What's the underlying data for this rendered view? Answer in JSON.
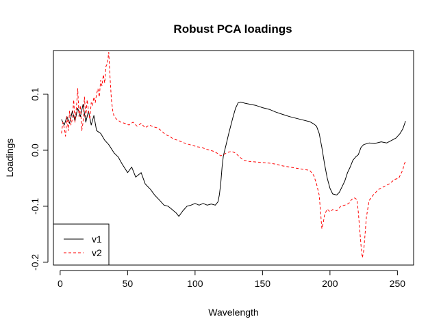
{
  "chart_data": {
    "type": "line",
    "title": "Robust PCA loadings",
    "xlabel": "Wavelength",
    "ylabel": "Loadings",
    "xlim": [
      -5,
      262
    ],
    "ylim": [
      -0.205,
      0.178
    ],
    "x_ticks": [
      0,
      50,
      100,
      150,
      200,
      250
    ],
    "x_tick_labels": [
      "0",
      "50",
      "100",
      "150",
      "200",
      "250"
    ],
    "y_ticks": [
      -0.2,
      -0.1,
      0.0,
      0.1
    ],
    "y_tick_labels": [
      "-0.2",
      "-0.1",
      "0.0",
      "0.1"
    ],
    "grid": false,
    "legend": {
      "position": "bottom-left",
      "entries": [
        "v1",
        "v2"
      ]
    },
    "series": [
      {
        "name": "v1",
        "color": "#000000",
        "dash": "solid",
        "points": [
          [
            1,
            0.055
          ],
          [
            3,
            0.045
          ],
          [
            5,
            0.06
          ],
          [
            7,
            0.048
          ],
          [
            9,
            0.07
          ],
          [
            11,
            0.052
          ],
          [
            13,
            0.075
          ],
          [
            15,
            0.06
          ],
          [
            17,
            0.082
          ],
          [
            19,
            0.05
          ],
          [
            21,
            0.07
          ],
          [
            23,
            0.045
          ],
          [
            25,
            0.062
          ],
          [
            27,
            0.035
          ],
          [
            30,
            0.03
          ],
          [
            33,
            0.018
          ],
          [
            36,
            0.01
          ],
          [
            40,
            -0.005
          ],
          [
            43,
            -0.012
          ],
          [
            46,
            -0.025
          ],
          [
            50,
            -0.04
          ],
          [
            53,
            -0.03
          ],
          [
            56,
            -0.048
          ],
          [
            60,
            -0.04
          ],
          [
            63,
            -0.06
          ],
          [
            67,
            -0.07
          ],
          [
            70,
            -0.08
          ],
          [
            74,
            -0.09
          ],
          [
            77,
            -0.098
          ],
          [
            80,
            -0.1
          ],
          [
            83,
            -0.106
          ],
          [
            86,
            -0.112
          ],
          [
            88,
            -0.118
          ],
          [
            91,
            -0.108
          ],
          [
            94,
            -0.1
          ],
          [
            97,
            -0.098
          ],
          [
            100,
            -0.095
          ],
          [
            103,
            -0.098
          ],
          [
            106,
            -0.095
          ],
          [
            109,
            -0.098
          ],
          [
            112,
            -0.096
          ],
          [
            115,
            -0.098
          ],
          [
            117,
            -0.092
          ],
          [
            118,
            -0.08
          ],
          [
            119,
            -0.06
          ],
          [
            120,
            -0.03
          ],
          [
            121,
            -0.01
          ],
          [
            123,
            0.01
          ],
          [
            125,
            0.03
          ],
          [
            128,
            0.058
          ],
          [
            130,
            0.075
          ],
          [
            132,
            0.085
          ],
          [
            134,
            0.086
          ],
          [
            137,
            0.084
          ],
          [
            141,
            0.082
          ],
          [
            145,
            0.08
          ],
          [
            150,
            0.076
          ],
          [
            155,
            0.073
          ],
          [
            160,
            0.068
          ],
          [
            165,
            0.064
          ],
          [
            170,
            0.06
          ],
          [
            175,
            0.057
          ],
          [
            180,
            0.054
          ],
          [
            185,
            0.051
          ],
          [
            188,
            0.047
          ],
          [
            190,
            0.043
          ],
          [
            192,
            0.03
          ],
          [
            194,
            0.005
          ],
          [
            196,
            -0.025
          ],
          [
            198,
            -0.05
          ],
          [
            200,
            -0.068
          ],
          [
            202,
            -0.078
          ],
          [
            205,
            -0.08
          ],
          [
            207,
            -0.075
          ],
          [
            209,
            -0.065
          ],
          [
            211,
            -0.055
          ],
          [
            213,
            -0.04
          ],
          [
            215,
            -0.03
          ],
          [
            217,
            -0.018
          ],
          [
            219,
            -0.012
          ],
          [
            221,
            -0.008
          ],
          [
            223,
            0.005
          ],
          [
            225,
            0.01
          ],
          [
            229,
            0.013
          ],
          [
            233,
            0.012
          ],
          [
            238,
            0.015
          ],
          [
            242,
            0.013
          ],
          [
            246,
            0.018
          ],
          [
            249,
            0.022
          ],
          [
            252,
            0.03
          ],
          [
            254,
            0.038
          ],
          [
            256,
            0.052
          ]
        ]
      },
      {
        "name": "v2",
        "color": "#ff0000",
        "dash": "dashed",
        "points": [
          [
            1,
            0.03
          ],
          [
            2,
            0.05
          ],
          [
            3,
            0.04
          ],
          [
            4,
            0.025
          ],
          [
            5,
            0.06
          ],
          [
            6,
            0.035
          ],
          [
            7,
            0.07
          ],
          [
            8,
            0.045
          ],
          [
            9,
            0.055
          ],
          [
            10,
            0.09
          ],
          [
            11,
            0.05
          ],
          [
            12,
            0.075
          ],
          [
            13,
            0.11
          ],
          [
            14,
            0.06
          ],
          [
            15,
            0.08
          ],
          [
            16,
            0.035
          ],
          [
            17,
            0.05
          ],
          [
            18,
            0.095
          ],
          [
            19,
            0.06
          ],
          [
            20,
            0.09
          ],
          [
            21,
            0.07
          ],
          [
            22,
            0.055
          ],
          [
            23,
            0.085
          ],
          [
            24,
            0.08
          ],
          [
            25,
            0.095
          ],
          [
            26,
            0.085
          ],
          [
            27,
            0.1
          ],
          [
            28,
            0.11
          ],
          [
            29,
            0.095
          ],
          [
            30,
            0.125
          ],
          [
            31,
            0.115
          ],
          [
            32,
            0.135
          ],
          [
            33,
            0.12
          ],
          [
            34,
            0.15
          ],
          [
            35,
            0.155
          ],
          [
            36,
            0.175
          ],
          [
            37,
            0.13
          ],
          [
            38,
            0.09
          ],
          [
            39,
            0.07
          ],
          [
            40,
            0.06
          ],
          [
            42,
            0.055
          ],
          [
            45,
            0.05
          ],
          [
            48,
            0.048
          ],
          [
            51,
            0.045
          ],
          [
            54,
            0.05
          ],
          [
            57,
            0.043
          ],
          [
            60,
            0.048
          ],
          [
            63,
            0.04
          ],
          [
            66,
            0.045
          ],
          [
            69,
            0.042
          ],
          [
            72,
            0.04
          ],
          [
            75,
            0.035
          ],
          [
            78,
            0.028
          ],
          [
            81,
            0.025
          ],
          [
            84,
            0.02
          ],
          [
            87,
            0.018
          ],
          [
            90,
            0.015
          ],
          [
            93,
            0.012
          ],
          [
            96,
            0.01
          ],
          [
            99,
            0.008
          ],
          [
            102,
            0.006
          ],
          [
            105,
            0.005
          ],
          [
            108,
            0.002
          ],
          [
            111,
            0.0
          ],
          [
            114,
            -0.002
          ],
          [
            117,
            -0.006
          ],
          [
            119,
            -0.01
          ],
          [
            121,
            -0.008
          ],
          [
            124,
            -0.004
          ],
          [
            127,
            -0.002
          ],
          [
            130,
            -0.005
          ],
          [
            133,
            -0.012
          ],
          [
            136,
            -0.018
          ],
          [
            140,
            -0.02
          ],
          [
            145,
            -0.021
          ],
          [
            150,
            -0.022
          ],
          [
            155,
            -0.023
          ],
          [
            160,
            -0.025
          ],
          [
            165,
            -0.028
          ],
          [
            170,
            -0.03
          ],
          [
            175,
            -0.032
          ],
          [
            180,
            -0.034
          ],
          [
            185,
            -0.036
          ],
          [
            188,
            -0.045
          ],
          [
            190,
            -0.06
          ],
          [
            192,
            -0.08
          ],
          [
            193,
            -0.11
          ],
          [
            194,
            -0.14
          ],
          [
            195,
            -0.13
          ],
          [
            196,
            -0.115
          ],
          [
            198,
            -0.105
          ],
          [
            200,
            -0.11
          ],
          [
            202,
            -0.106
          ],
          [
            205,
            -0.108
          ],
          [
            208,
            -0.1
          ],
          [
            211,
            -0.098
          ],
          [
            214,
            -0.095
          ],
          [
            216,
            -0.088
          ],
          [
            218,
            -0.085
          ],
          [
            220,
            -0.088
          ],
          [
            221,
            -0.11
          ],
          [
            222,
            -0.14
          ],
          [
            223,
            -0.17
          ],
          [
            224,
            -0.192
          ],
          [
            225,
            -0.18
          ],
          [
            226,
            -0.15
          ],
          [
            227,
            -0.12
          ],
          [
            229,
            -0.09
          ],
          [
            232,
            -0.08
          ],
          [
            236,
            -0.07
          ],
          [
            240,
            -0.065
          ],
          [
            244,
            -0.06
          ],
          [
            248,
            -0.052
          ],
          [
            251,
            -0.05
          ],
          [
            253,
            -0.04
          ],
          [
            254,
            -0.035
          ],
          [
            255,
            -0.025
          ],
          [
            256,
            -0.02
          ]
        ]
      }
    ]
  }
}
